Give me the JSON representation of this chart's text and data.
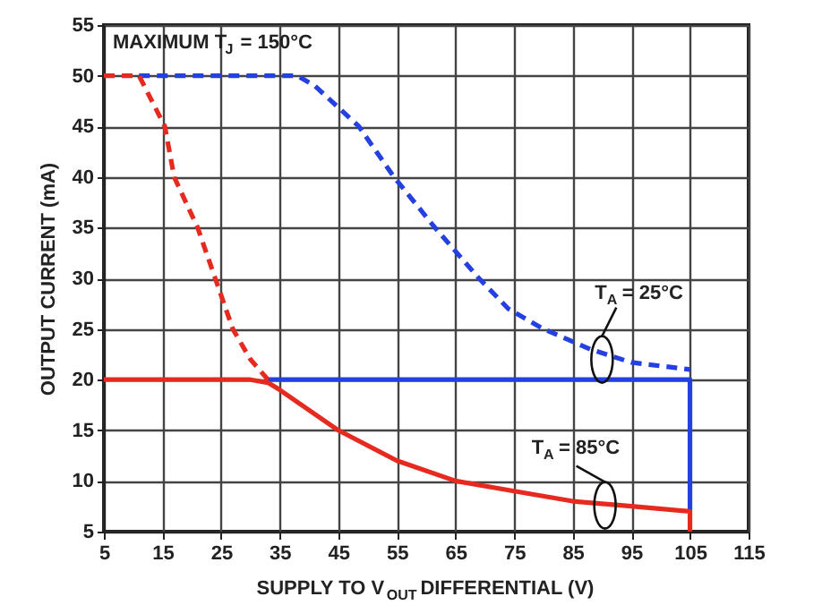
{
  "chart_data": {
    "type": "line",
    "xlabel": "SUPPLY TO V$_{OUT}$ DIFFERENTIAL (V)",
    "ylabel": "OUTPUT CURRENT (mA)",
    "xlim": [
      5,
      115
    ],
    "xticks": [
      5,
      15,
      25,
      35,
      45,
      55,
      65,
      75,
      85,
      95,
      105,
      115
    ],
    "ylim": [
      5,
      55
    ],
    "yticks": [
      5,
      10,
      15,
      20,
      25,
      30,
      35,
      40,
      45,
      50,
      55
    ],
    "grid": true,
    "marker": "none",
    "annotations": [
      "MAXIMUM T$_{J}$ = 150°C",
      {
        "text": "T$_{A}$ = 25°C",
        "x": 90,
        "y": 22
      },
      {
        "text": "T$_{A}$ = 85°C",
        "x": 90.5,
        "y": 7.6
      }
    ],
    "series": [
      {
        "color": "#2440e0",
        "line_style": "dashed",
        "x": [
          11,
          38,
          41,
          48.5,
          54.5,
          61.5,
          69,
          74,
          80,
          88,
          95,
          105
        ],
        "values": [
          50,
          50,
          49,
          45,
          40,
          35,
          30,
          27,
          25,
          23,
          21.7,
          21
        ]
      },
      {
        "color": "#2440e0",
        "line_style": "solid",
        "x": [
          33,
          105,
          105
        ],
        "values": [
          20,
          20,
          7
        ]
      },
      {
        "color": "#e62a20",
        "line_style": "dashed",
        "x": [
          5,
          11,
          15.4,
          17,
          21,
          24,
          27,
          30,
          33
        ],
        "values": [
          50,
          50,
          45,
          40,
          35,
          30,
          25,
          22,
          20
        ]
      },
      {
        "color": "#e62a20",
        "line_style": "solid",
        "x": [
          5,
          30,
          33,
          35,
          45,
          55,
          65,
          75,
          85,
          95,
          105,
          105
        ],
        "values": [
          20,
          20,
          19.7,
          19,
          15,
          12,
          10,
          9,
          8,
          7.5,
          7,
          5
        ]
      }
    ]
  }
}
